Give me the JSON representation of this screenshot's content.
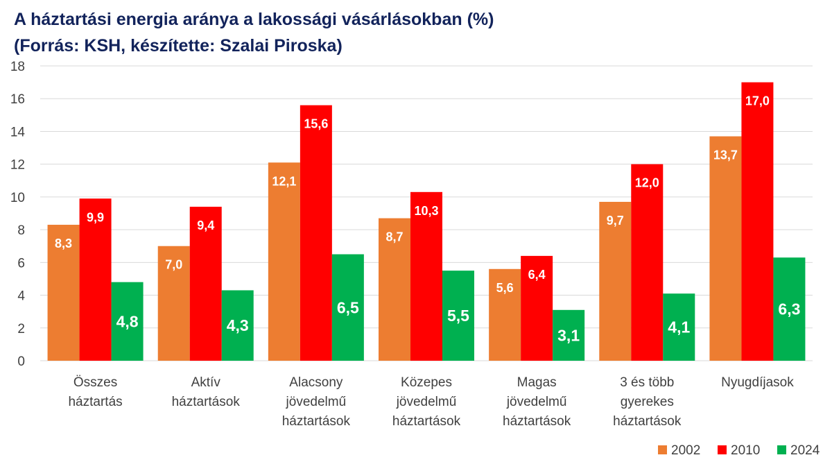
{
  "chart_data": {
    "type": "bar",
    "title": "A háztartási energia aránya a lakossági vásárlásokban (%)",
    "subtitle": "(Forrás: KSH, készítette: Szalai Piroska)",
    "xlabel": "",
    "ylabel": "",
    "ylim": [
      0,
      18
    ],
    "yticks": [
      "0",
      "2",
      "4",
      "6",
      "8",
      "10",
      "12",
      "14",
      "16",
      "18"
    ],
    "grid": true,
    "legend_position": "bottom-right",
    "categories": [
      [
        "Összes",
        "háztartás"
      ],
      [
        "Aktív",
        "háztartások"
      ],
      [
        "Alacsony",
        "jövedelmű",
        "háztartások"
      ],
      [
        "Közepes",
        "jövedelmű",
        "háztartások"
      ],
      [
        "Magas",
        "jövedelmű",
        "háztartások"
      ],
      [
        "3 és több",
        "gyerekes",
        "háztartások"
      ],
      [
        "Nyugdíjasok"
      ]
    ],
    "series": [
      {
        "name": "2002",
        "color": "#ed7d31",
        "values": [
          8.3,
          7.0,
          12.1,
          8.7,
          5.6,
          9.7,
          13.7
        ],
        "labels": [
          "8,3",
          "7,0",
          "12,1",
          "8,7",
          "5,6",
          "9,7",
          "13,7"
        ]
      },
      {
        "name": "2010",
        "color": "#ff0000",
        "values": [
          9.9,
          9.4,
          15.6,
          10.3,
          6.4,
          12.0,
          17.0
        ],
        "labels": [
          "9,9",
          "9,4",
          "15,6",
          "10,3",
          "6,4",
          "12,0",
          "17,0"
        ]
      },
      {
        "name": "2024",
        "color": "#00b050",
        "values": [
          4.8,
          4.3,
          6.5,
          5.5,
          3.1,
          4.1,
          6.3
        ],
        "labels": [
          "4,8",
          "4,3",
          "6,5",
          "5,5",
          "3,1",
          "4,1",
          "6,3"
        ]
      }
    ]
  }
}
